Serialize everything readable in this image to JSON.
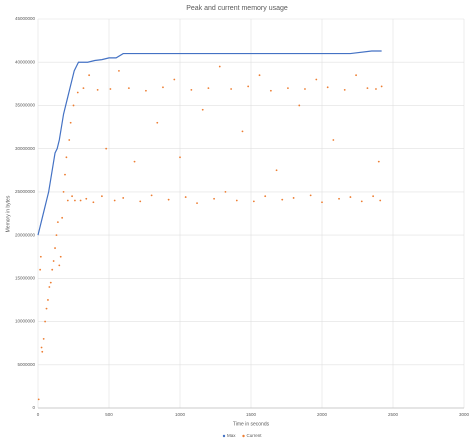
{
  "chart_data": {
    "type": "scatter",
    "title": "Peak and current memory usage",
    "x_label": "Time in seconds",
    "y_label": "Memory in bytes",
    "xlim": [
      0,
      3000
    ],
    "xticks": [
      0,
      500,
      1000,
      1500,
      2000,
      2500,
      3000
    ],
    "ylim": [
      0,
      45000000
    ],
    "yticks": [
      0,
      5000000,
      10000000,
      15000000,
      20000000,
      25000000,
      30000000,
      35000000,
      40000000,
      45000000
    ],
    "grid": true,
    "legend": "bottom",
    "series": [
      {
        "name": "Max",
        "color": "#4472c4",
        "x": [
          0,
          15,
          30,
          45,
          60,
          75,
          90,
          105,
          120,
          135,
          150,
          165,
          180,
          195,
          210,
          225,
          240,
          255,
          270,
          285,
          300,
          350,
          400,
          450,
          500,
          550,
          600,
          700,
          800,
          900,
          1000,
          1200,
          1400,
          1600,
          1800,
          2000,
          2200,
          2350,
          2400,
          2420
        ],
        "values": [
          20000000,
          21000000,
          22000000,
          23000000,
          24000000,
          25000000,
          26500000,
          28000000,
          29500000,
          30000000,
          31000000,
          32500000,
          34000000,
          35000000,
          36000000,
          37000000,
          38000000,
          39000000,
          39500000,
          40000000,
          40000000,
          40000000,
          40200000,
          40300000,
          40500000,
          40500000,
          41000000,
          41000000,
          41000000,
          41000000,
          41000000,
          41000000,
          41000000,
          41000000,
          41000000,
          41000000,
          41000000,
          41300000,
          41300000,
          41300000
        ]
      },
      {
        "name": "Current",
        "color": "#ed7d31",
        "x": [
          5,
          15,
          20,
          25,
          30,
          40,
          50,
          60,
          70,
          80,
          90,
          100,
          110,
          120,
          130,
          140,
          150,
          160,
          170,
          180,
          190,
          200,
          210,
          220,
          230,
          240,
          250,
          260,
          280,
          300,
          320,
          340,
          360,
          390,
          420,
          450,
          480,
          510,
          540,
          570,
          600,
          640,
          680,
          720,
          760,
          800,
          840,
          880,
          920,
          960,
          1000,
          1040,
          1080,
          1120,
          1160,
          1200,
          1240,
          1280,
          1320,
          1360,
          1400,
          1440,
          1480,
          1520,
          1560,
          1600,
          1640,
          1680,
          1720,
          1760,
          1800,
          1840,
          1880,
          1920,
          1960,
          2000,
          2040,
          2080,
          2120,
          2160,
          2200,
          2240,
          2280,
          2320,
          2360,
          2380,
          2400,
          2410,
          2420
        ],
        "values": [
          1000000,
          16000000,
          17500000,
          7000000,
          6500000,
          8000000,
          10000000,
          11500000,
          12500000,
          14000000,
          14500000,
          16000000,
          17000000,
          18500000,
          20000000,
          21500000,
          16500000,
          17500000,
          22000000,
          25000000,
          27000000,
          29000000,
          24000000,
          31000000,
          33000000,
          24500000,
          35000000,
          24000000,
          36500000,
          24000000,
          37000000,
          24200000,
          38500000,
          23800000,
          36800000,
          24500000,
          30000000,
          36900000,
          24000000,
          39000000,
          24300000,
          37000000,
          28500000,
          23900000,
          36700000,
          24600000,
          33000000,
          37100000,
          24100000,
          38000000,
          29000000,
          24400000,
          36800000,
          23700000,
          34500000,
          37000000,
          24200000,
          39500000,
          25000000,
          36900000,
          24000000,
          32000000,
          37200000,
          23900000,
          38500000,
          24500000,
          36700000,
          27500000,
          24100000,
          37000000,
          24300000,
          35000000,
          36900000,
          24600000,
          38000000,
          23800000,
          37100000,
          31000000,
          24200000,
          36800000,
          24400000,
          38500000,
          23900000,
          37000000,
          24500000,
          36900000,
          28500000,
          24000000,
          37200000
        ]
      }
    ]
  }
}
